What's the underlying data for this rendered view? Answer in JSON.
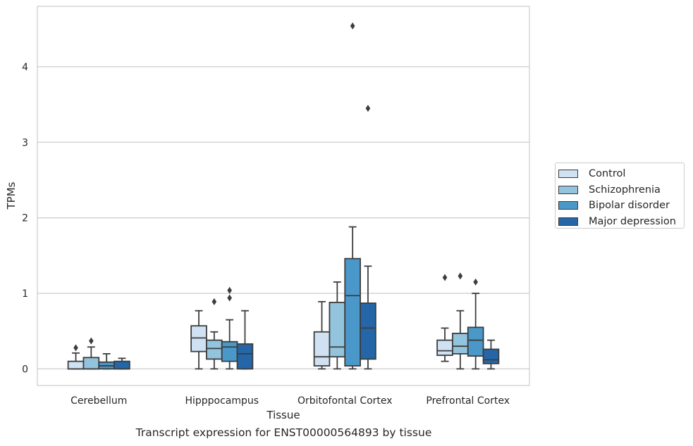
{
  "chart_data": {
    "type": "boxplot",
    "caption": "Transcript expression for ENST00000564893 by tissue",
    "xlabel": "Tissue",
    "ylabel": "TPMs",
    "ylim": [
      -0.22,
      4.8
    ],
    "yticks": [
      0,
      1,
      2,
      3,
      4
    ],
    "grid": "horizontal",
    "legend_position": "right",
    "categories": [
      "Cerebellum",
      "Hipppocampus",
      "Orbitofontal Cortex",
      "Prefrontal Cortex"
    ],
    "series": [
      {
        "name": "Control",
        "color": "#cfe1f2",
        "boxes": [
          {
            "whislo": 0.0,
            "q1": 0.0,
            "med": 0.0,
            "q3": 0.1,
            "whishi": 0.21,
            "fliers": [
              0.28
            ]
          },
          {
            "whislo": 0.0,
            "q1": 0.23,
            "med": 0.41,
            "q3": 0.57,
            "whishi": 0.77,
            "fliers": []
          },
          {
            "whislo": 0.0,
            "q1": 0.04,
            "med": 0.16,
            "q3": 0.49,
            "whishi": 0.89,
            "fliers": []
          },
          {
            "whislo": 0.1,
            "q1": 0.18,
            "med": 0.24,
            "q3": 0.38,
            "whishi": 0.54,
            "fliers": [
              1.21
            ]
          }
        ]
      },
      {
        "name": "Schizophrenia",
        "color": "#93c4de",
        "boxes": [
          {
            "whislo": 0.0,
            "q1": 0.0,
            "med": 0.0,
            "q3": 0.15,
            "whishi": 0.29,
            "fliers": [
              0.37
            ]
          },
          {
            "whislo": 0.0,
            "q1": 0.13,
            "med": 0.27,
            "q3": 0.38,
            "whishi": 0.49,
            "fliers": [
              0.89
            ]
          },
          {
            "whislo": 0.0,
            "q1": 0.16,
            "med": 0.29,
            "q3": 0.88,
            "whishi": 1.15,
            "fliers": []
          },
          {
            "whislo": 0.0,
            "q1": 0.2,
            "med": 0.3,
            "q3": 0.47,
            "whishi": 0.77,
            "fliers": [
              1.23
            ]
          }
        ]
      },
      {
        "name": "Bipolar disorder",
        "color": "#4a98c9",
        "boxes": [
          {
            "whislo": 0.0,
            "q1": 0.0,
            "med": 0.04,
            "q3": 0.09,
            "whishi": 0.2,
            "fliers": []
          },
          {
            "whislo": 0.0,
            "q1": 0.1,
            "med": 0.29,
            "q3": 0.36,
            "whishi": 0.65,
            "fliers": [
              0.94,
              1.04
            ]
          },
          {
            "whislo": 0.0,
            "q1": 0.04,
            "med": 0.97,
            "q3": 1.46,
            "whishi": 1.88,
            "fliers": [
              4.54
            ]
          },
          {
            "whislo": 0.0,
            "q1": 0.17,
            "med": 0.38,
            "q3": 0.55,
            "whishi": 1.0,
            "fliers": [
              1.15
            ]
          }
        ]
      },
      {
        "name": "Major depression",
        "color": "#2566a8",
        "boxes": [
          {
            "whislo": 0.0,
            "q1": 0.0,
            "med": 0.0,
            "q3": 0.1,
            "whishi": 0.14,
            "fliers": []
          },
          {
            "whislo": 0.0,
            "q1": 0.0,
            "med": 0.2,
            "q3": 0.33,
            "whishi": 0.77,
            "fliers": []
          },
          {
            "whislo": 0.0,
            "q1": 0.13,
            "med": 0.54,
            "q3": 0.87,
            "whishi": 1.36,
            "fliers": [
              3.45
            ]
          },
          {
            "whislo": 0.0,
            "q1": 0.07,
            "med": 0.12,
            "q3": 0.26,
            "whishi": 0.38,
            "fliers": []
          }
        ]
      }
    ]
  }
}
